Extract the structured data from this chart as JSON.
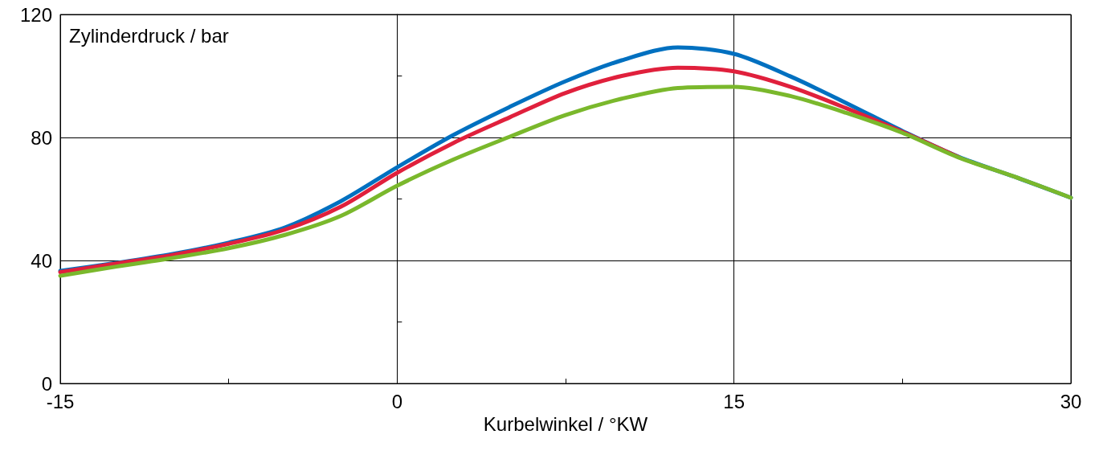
{
  "chart_data": {
    "type": "line",
    "ylabel": "Zylinderdruck / bar",
    "xlabel": "Kurbelwinkel / °KW",
    "x": [
      -15,
      -12.5,
      -10,
      -7.5,
      -5,
      -2.5,
      0,
      2.5,
      5,
      7.5,
      10,
      12.5,
      15,
      17.5,
      20,
      22.5,
      25,
      27.5,
      30
    ],
    "series": [
      {
        "color": "#0070c0",
        "values": [
          36.6,
          39.2,
          42.1,
          45.8,
          50.7,
          59.3,
          70.3,
          80.8,
          89.9,
          98.3,
          105.1,
          109.3,
          107.2,
          99.9,
          91.2,
          82.1,
          73.7,
          67.2,
          60.4
        ]
      },
      {
        "color": "#e0203c",
        "values": [
          36.2,
          39.0,
          41.8,
          45.4,
          50.0,
          57.5,
          68.5,
          78.2,
          86.5,
          94.5,
          100.0,
          102.7,
          101.5,
          96.5,
          89.5,
          81.8,
          73.6,
          null,
          null
        ]
      },
      {
        "color": "#7ab82c",
        "values": [
          35.0,
          38.0,
          40.8,
          44.0,
          48.3,
          54.5,
          64.3,
          72.8,
          80.2,
          87.3,
          92.6,
          96.1,
          96.5,
          93.5,
          88.0,
          81.5,
          73.5,
          67.2,
          60.4
        ]
      }
    ],
    "xlim": [
      -15,
      30
    ],
    "xticks": [
      -15,
      {
        "value": -7.5,
        "label": null
      },
      0,
      {
        "value": 7.5,
        "label": null
      },
      15,
      {
        "value": 22.5,
        "label": null
      },
      30
    ],
    "ylim": [
      0,
      120
    ],
    "yticks": [
      0,
      {
        "value": 20,
        "label": null
      },
      40,
      {
        "value": 60,
        "label": null
      },
      80,
      {
        "value": 100,
        "label": null
      },
      120
    ],
    "grid": true,
    "marker": "none",
    "line_style": "solid"
  }
}
